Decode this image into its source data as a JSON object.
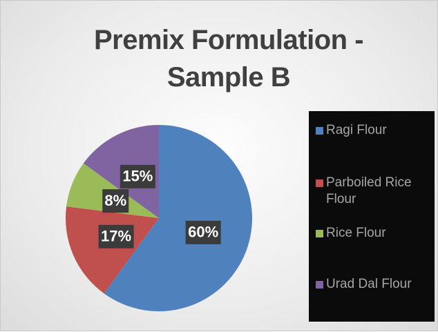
{
  "chart_data": {
    "type": "pie",
    "title": "Premix Formulation  - Sample B",
    "categories": [
      "Ragi Flour",
      "Parboiled Rice Flour",
      "Rice Flour",
      "Urad Dal Flour"
    ],
    "values": [
      60,
      17,
      8,
      15
    ],
    "value_labels": [
      "60%",
      "17%",
      "8%",
      "15%"
    ],
    "colors": [
      "#4f81bd",
      "#c0504d",
      "#9bbb59",
      "#8064a2"
    ],
    "legend": "right"
  }
}
